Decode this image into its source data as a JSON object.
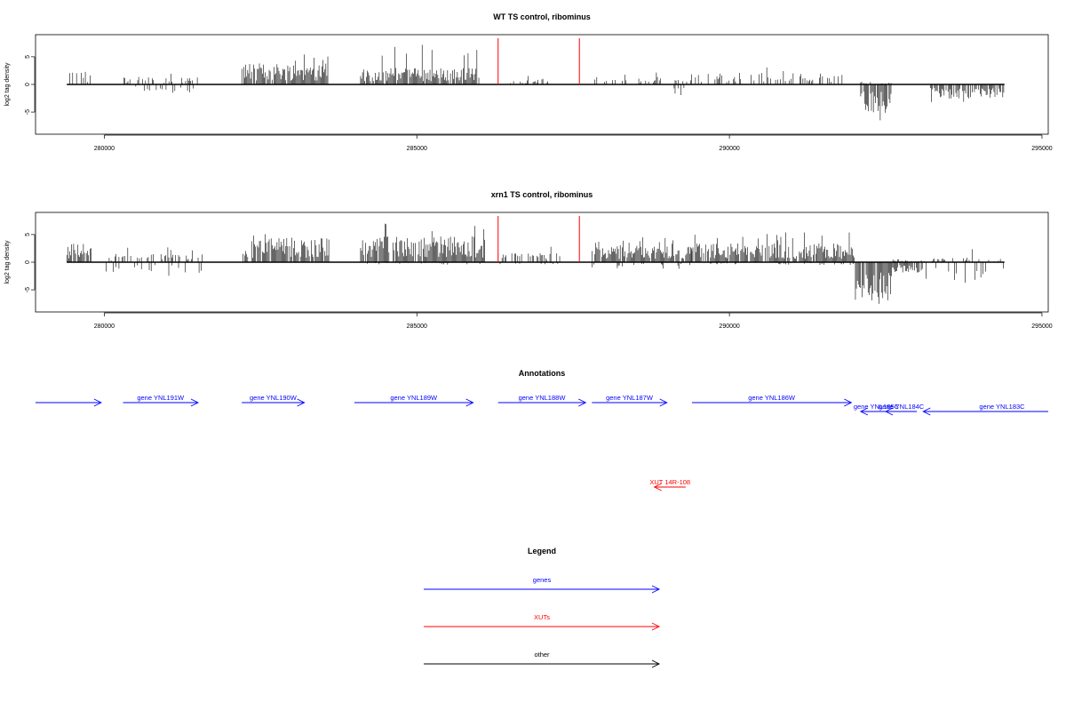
{
  "chart_data": [
    {
      "type": "bar",
      "title": "WT TS control, ribominus",
      "ylabel": "log2 tag density",
      "xlim": [
        278900,
        295100
      ],
      "ylim": [
        -9,
        9
      ],
      "xticks": [
        280000,
        285000,
        290000,
        295000
      ],
      "yticks": [
        -5,
        0,
        5
      ],
      "marker_lines": {
        "color": "#ff0000",
        "x": [
          286300,
          287600
        ]
      },
      "series": [
        {
          "values_from": "regions",
          "regions": [
            {
              "start": 279400,
              "end": 279800,
              "pos_mean": 1.4,
              "pos_max": 4.0,
              "neg_max": 0.0
            },
            {
              "start": 280300,
              "end": 281500,
              "pos_mean": 0.8,
              "pos_max": 2.6,
              "neg_max": 1.5
            },
            {
              "start": 282200,
              "end": 283600,
              "pos_mean": 2.3,
              "pos_max": 5.6,
              "neg_max": 0.0
            },
            {
              "start": 284100,
              "end": 286000,
              "pos_mean": 1.8,
              "pos_max": 7.3,
              "neg_max": 0.0
            },
            {
              "start": 286500,
              "end": 287100,
              "pos_mean": 0.6,
              "pos_max": 1.8,
              "neg_max": 0.0
            },
            {
              "start": 287800,
              "end": 288900,
              "pos_mean": 0.8,
              "pos_max": 2.2,
              "neg_max": 0.0
            },
            {
              "start": 289100,
              "end": 289300,
              "pos_mean": 0.5,
              "pos_max": 1.0,
              "neg_max": 2.5
            },
            {
              "start": 289300,
              "end": 291900,
              "pos_mean": 1.3,
              "pos_max": 3.2,
              "neg_max": 0.0
            },
            {
              "start": 292100,
              "end": 292600,
              "pos_mean": 0.3,
              "pos_max": 2.8,
              "neg_max": 6.5
            },
            {
              "start": 293200,
              "end": 294400,
              "pos_mean": 0.0,
              "pos_max": 0.0,
              "neg_max": 3.2
            }
          ]
        }
      ]
    },
    {
      "type": "bar",
      "title": "xrn1 TS control, ribominus",
      "ylabel": "log2 tag density",
      "xlim": [
        278900,
        295100
      ],
      "ylim": [
        -9,
        9
      ],
      "xticks": [
        280000,
        285000,
        290000,
        295000
      ],
      "yticks": [
        -5,
        0,
        5
      ],
      "marker_lines": {
        "color": "#ff0000",
        "x": [
          286300,
          287600
        ]
      },
      "series": [
        {
          "values_from": "regions",
          "regions": [
            {
              "start": 279400,
              "end": 279800,
              "pos_mean": 2.0,
              "pos_max": 5.0,
              "neg_max": 0.0
            },
            {
              "start": 280000,
              "end": 281600,
              "pos_mean": 0.9,
              "pos_max": 2.8,
              "neg_max": 2.5
            },
            {
              "start": 282200,
              "end": 283600,
              "pos_mean": 2.6,
              "pos_max": 6.0,
              "neg_max": 0.0
            },
            {
              "start": 284100,
              "end": 286100,
              "pos_mean": 2.8,
              "pos_max": 8.0,
              "neg_max": 0.5
            },
            {
              "start": 286300,
              "end": 287300,
              "pos_mean": 1.0,
              "pos_max": 3.0,
              "neg_max": 0.5
            },
            {
              "start": 287800,
              "end": 289400,
              "pos_mean": 1.8,
              "pos_max": 4.5,
              "neg_max": 1.5
            },
            {
              "start": 289400,
              "end": 292000,
              "pos_mean": 2.0,
              "pos_max": 5.5,
              "neg_max": 0.5
            },
            {
              "start": 292000,
              "end": 292600,
              "pos_mean": 0.0,
              "pos_max": 0.0,
              "neg_max": 8.7
            },
            {
              "start": 292600,
              "end": 293100,
              "pos_mean": 0.3,
              "pos_max": 0.6,
              "neg_max": 2.5
            },
            {
              "start": 293100,
              "end": 294400,
              "pos_mean": 0.5,
              "pos_max": 2.5,
              "neg_max": 4.8
            }
          ]
        }
      ]
    }
  ],
  "annotations": {
    "title": "Annotations",
    "xlim": [
      278900,
      295100
    ],
    "genes_color": "#0000ff",
    "xuts_color": "#ff0000",
    "genes": [
      {
        "label": "",
        "start": 278900,
        "end": 279950,
        "strand": "+"
      },
      {
        "label": "gene YNL191W",
        "start": 280300,
        "end": 281500,
        "strand": "+"
      },
      {
        "label": "gene YNL190W",
        "start": 282200,
        "end": 283200,
        "strand": "+"
      },
      {
        "label": "gene YNL189W",
        "start": 284000,
        "end": 285900,
        "strand": "+"
      },
      {
        "label": "gene YNL188W",
        "start": 286300,
        "end": 287700,
        "strand": "+"
      },
      {
        "label": "gene YNL187W",
        "start": 287800,
        "end": 289000,
        "strand": "+"
      },
      {
        "label": "gene YNL186W",
        "start": 289400,
        "end": 291950,
        "strand": "+"
      },
      {
        "label": "gene YNL185C",
        "start": 292100,
        "end": 292600,
        "strand": "-"
      },
      {
        "label": "gene YNL184C",
        "start": 292500,
        "end": 293000,
        "strand": "-"
      },
      {
        "label": "gene YNL183C",
        "start": 293100,
        "end": 295100,
        "strand": "-"
      }
    ],
    "xuts": [
      {
        "label": "XUT 14R-108",
        "start": 288800,
        "end": 289300,
        "strand": "-"
      }
    ]
  },
  "legend": {
    "title": "Legend",
    "items": [
      {
        "label": "genes",
        "color": "#0000ff"
      },
      {
        "label": "XUTs",
        "color": "#ff0000"
      },
      {
        "label": "other",
        "color": "#000000"
      }
    ]
  }
}
